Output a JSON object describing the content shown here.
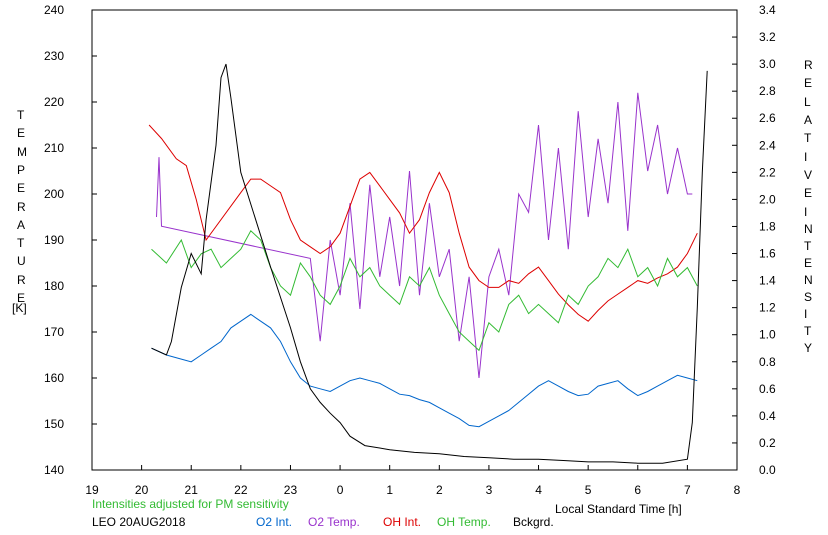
{
  "chart_data": {
    "type": "line",
    "y_left_label": "TEMPERATURE [K]",
    "y_right_label": "RELATIVE INTENSITY",
    "x_label": "Local Standard Time [h]",
    "x_ticks": [
      "19",
      "20",
      "21",
      "22",
      "23",
      "0",
      "1",
      "2",
      "3",
      "4",
      "5",
      "6",
      "7",
      "8"
    ],
    "y_left_ticks": [
      "140",
      "150",
      "160",
      "170",
      "180",
      "190",
      "200",
      "210",
      "220",
      "230",
      "240"
    ],
    "y_right_ticks": [
      "0.0",
      "0.2",
      "0.4",
      "0.6",
      "0.8",
      "1.0",
      "1.2",
      "1.4",
      "1.6",
      "1.8",
      "2.0",
      "2.2",
      "2.4",
      "2.6",
      "2.8",
      "3.0",
      "3.2",
      "3.4"
    ],
    "xlim": [
      19,
      32
    ],
    "ylim_left": [
      140,
      240
    ],
    "ylim_right": [
      0,
      3.4
    ],
    "series": [
      {
        "name": "O2 Int.",
        "axis": "right",
        "color": "#0066cc",
        "x": [
          20.2,
          20.5,
          20.8,
          21.0,
          21.2,
          21.4,
          21.6,
          21.8,
          22.0,
          22.2,
          22.4,
          22.6,
          22.8,
          23.0,
          23.2,
          23.4,
          23.6,
          23.8,
          24.0,
          24.2,
          24.4,
          24.6,
          24.8,
          25.0,
          25.2,
          25.4,
          25.6,
          25.8,
          26.0,
          26.2,
          26.4,
          26.6,
          26.8,
          27.0,
          27.2,
          27.4,
          27.6,
          27.8,
          28.0,
          28.2,
          28.4,
          28.6,
          28.8,
          29.0,
          29.2,
          29.4,
          29.6,
          29.8,
          30.0,
          30.2,
          30.4,
          30.6,
          30.8,
          31.0,
          31.2
        ],
        "values": [
          0.9,
          0.85,
          0.82,
          0.8,
          0.85,
          0.9,
          0.95,
          1.05,
          1.1,
          1.15,
          1.1,
          1.05,
          0.95,
          0.8,
          0.68,
          0.62,
          0.6,
          0.58,
          0.62,
          0.66,
          0.68,
          0.66,
          0.64,
          0.6,
          0.56,
          0.55,
          0.52,
          0.5,
          0.46,
          0.42,
          0.38,
          0.33,
          0.32,
          0.36,
          0.4,
          0.44,
          0.5,
          0.56,
          0.62,
          0.66,
          0.62,
          0.58,
          0.55,
          0.56,
          0.62,
          0.64,
          0.66,
          0.6,
          0.55,
          0.58,
          0.62,
          0.66,
          0.7,
          0.68,
          0.66
        ]
      },
      {
        "name": "O2 Temp.",
        "axis": "left",
        "color": "#9933cc",
        "x": [
          20.3,
          20.35,
          20.4,
          23.4,
          23.6,
          23.8,
          24.0,
          24.2,
          24.4,
          24.6,
          24.8,
          25.0,
          25.2,
          25.4,
          25.6,
          25.8,
          26.0,
          26.2,
          26.4,
          26.6,
          26.8,
          27.0,
          27.2,
          27.4,
          27.6,
          27.8,
          28.0,
          28.2,
          28.4,
          28.6,
          28.8,
          29.0,
          29.2,
          29.4,
          29.6,
          29.8,
          30.0,
          30.2,
          30.4,
          30.6,
          30.8,
          31.0,
          31.1
        ],
        "values": [
          195,
          208,
          193,
          186,
          168,
          190,
          178,
          198,
          175,
          202,
          182,
          195,
          180,
          205,
          178,
          198,
          182,
          188,
          168,
          182,
          160,
          182,
          188,
          178,
          200,
          196,
          215,
          190,
          210,
          188,
          218,
          195,
          212,
          198,
          220,
          192,
          222,
          205,
          215,
          200,
          210,
          200,
          200
        ]
      },
      {
        "name": "OH Int.",
        "axis": "right",
        "color": "#dd0000",
        "x": [
          20.15,
          20.4,
          20.7,
          20.9,
          21.1,
          21.3,
          22.0,
          22.2,
          22.4,
          22.6,
          22.8,
          23.0,
          23.2,
          23.4,
          23.6,
          23.8,
          24.0,
          24.2,
          24.4,
          24.6,
          24.8,
          25.0,
          25.2,
          25.4,
          25.6,
          25.8,
          26.0,
          26.2,
          26.4,
          26.6,
          26.8,
          27.0,
          27.2,
          27.4,
          27.6,
          27.8,
          28.0,
          28.2,
          28.4,
          28.6,
          28.8,
          29.0,
          29.2,
          29.4,
          29.6,
          29.8,
          30.0,
          30.2,
          30.4,
          30.6,
          30.8,
          31.0,
          31.2
        ],
        "values": [
          2.55,
          2.45,
          2.3,
          2.25,
          2.0,
          1.7,
          2.05,
          2.15,
          2.15,
          2.1,
          2.05,
          1.85,
          1.7,
          1.65,
          1.6,
          1.65,
          1.75,
          1.95,
          2.15,
          2.2,
          2.1,
          2.0,
          1.9,
          1.75,
          1.85,
          2.05,
          2.2,
          2.05,
          1.75,
          1.5,
          1.4,
          1.35,
          1.35,
          1.4,
          1.38,
          1.45,
          1.5,
          1.4,
          1.3,
          1.22,
          1.15,
          1.1,
          1.18,
          1.25,
          1.3,
          1.35,
          1.4,
          1.38,
          1.42,
          1.45,
          1.5,
          1.6,
          1.75
        ]
      },
      {
        "name": "OH Temp.",
        "axis": "left",
        "color": "#33bb33",
        "x": [
          20.2,
          20.5,
          20.8,
          21.0,
          21.2,
          21.4,
          21.6,
          21.8,
          22.0,
          22.2,
          22.4,
          22.6,
          22.8,
          23.0,
          23.2,
          23.4,
          23.6,
          23.8,
          24.0,
          24.2,
          24.4,
          24.6,
          24.8,
          25.0,
          25.2,
          25.4,
          25.6,
          25.8,
          26.0,
          26.2,
          26.4,
          26.6,
          26.8,
          27.0,
          27.2,
          27.4,
          27.6,
          27.8,
          28.0,
          28.2,
          28.4,
          28.6,
          28.8,
          29.0,
          29.2,
          29.4,
          29.6,
          29.8,
          30.0,
          30.2,
          30.4,
          30.6,
          30.8,
          31.0,
          31.2
        ],
        "values": [
          188,
          185,
          190,
          184,
          187,
          188,
          184,
          186,
          188,
          192,
          190,
          184,
          180,
          178,
          185,
          182,
          178,
          176,
          180,
          186,
          182,
          184,
          180,
          178,
          176,
          182,
          180,
          184,
          178,
          174,
          170,
          168,
          166,
          172,
          170,
          176,
          178,
          174,
          176,
          174,
          172,
          178,
          176,
          180,
          182,
          186,
          184,
          188,
          182,
          184,
          180,
          186,
          182,
          184,
          180
        ]
      },
      {
        "name": "Bckgrd.",
        "axis": "right",
        "color": "#000000",
        "x": [
          20.2,
          20.5,
          20.6,
          20.8,
          21.0,
          21.2,
          21.3,
          21.5,
          21.6,
          21.7,
          21.8,
          22.0,
          22.3,
          22.6,
          23.0,
          23.2,
          23.4,
          23.6,
          23.8,
          24.0,
          24.2,
          24.5,
          25.0,
          25.5,
          26.0,
          26.5,
          27.0,
          27.5,
          28.0,
          28.5,
          29.0,
          29.5,
          30.0,
          30.5,
          31.0,
          31.1,
          31.2,
          31.3,
          31.4
        ],
        "values": [
          0.9,
          0.85,
          0.95,
          1.35,
          1.6,
          1.45,
          1.85,
          2.4,
          2.9,
          3.0,
          2.75,
          2.2,
          1.85,
          1.5,
          1.05,
          0.8,
          0.6,
          0.5,
          0.42,
          0.35,
          0.25,
          0.18,
          0.15,
          0.13,
          0.12,
          0.1,
          0.09,
          0.08,
          0.08,
          0.07,
          0.06,
          0.06,
          0.05,
          0.05,
          0.08,
          0.35,
          1.2,
          2.2,
          2.95
        ]
      }
    ],
    "footer": {
      "note": "Intensities adjusted for PM sensitivity",
      "station": "LEO 20AUG2018",
      "legend": [
        {
          "label": "O2 Int.",
          "color": "#0066cc"
        },
        {
          "label": "O2 Temp.",
          "color": "#9933cc"
        },
        {
          "label": "OH Int.",
          "color": "#dd0000"
        },
        {
          "label": "OH Temp.",
          "color": "#33bb33"
        },
        {
          "label": "Bckgrd.",
          "color": "#000000"
        }
      ]
    }
  }
}
